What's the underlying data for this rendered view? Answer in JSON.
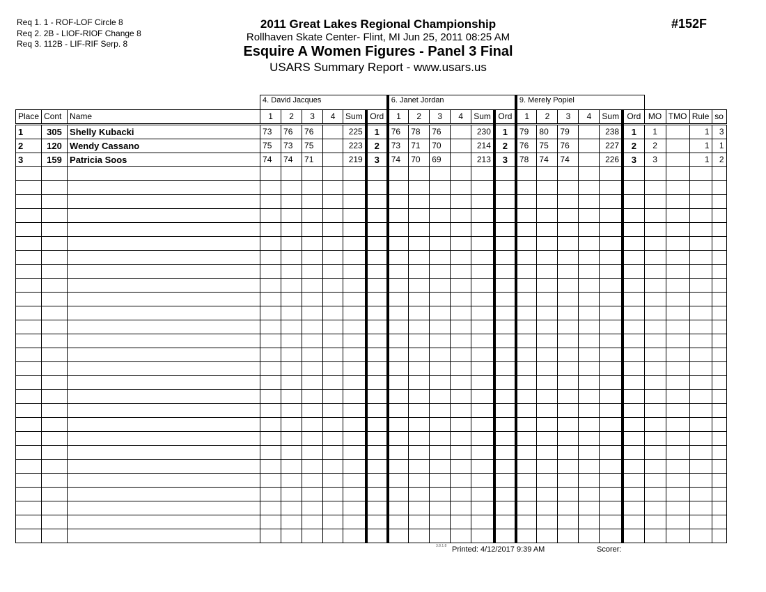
{
  "requirements": [
    "Req  1.  1 - ROF-LOF Circle 8",
    "Req  2.  2B - LIOF-RIOF Change 8",
    "Req  3.  112B - LIF-RIF Serp. 8"
  ],
  "header": {
    "title": "2011 Great Lakes Regional Championship",
    "location": "Rollhaven Skate Center- Flint, MI  Jun 25, 2011  08:25 AM",
    "event": "Esquire A Women Figures - Panel 3 Final",
    "report": "USARS Summary Report - www.usars.us",
    "event_number": "#152F"
  },
  "judges": [
    "4.  David Jacques",
    "6.  Janet Jordan",
    "9.  Merely Popiel"
  ],
  "columns": {
    "place": "Place",
    "cont": "Cont",
    "name": "Name",
    "judge_cols": [
      "1",
      "2",
      "3",
      "4",
      "Sum",
      "Ord"
    ],
    "mo": "MO",
    "tmo": "TMO",
    "rule": "Rule",
    "so": "so"
  },
  "rows": [
    {
      "place": "1",
      "cont": "305",
      "name": "Shelly Kubacki",
      "scores": [
        [
          "73",
          "76",
          "76",
          "",
          "225",
          "1"
        ],
        [
          "76",
          "78",
          "76",
          "",
          "230",
          "1"
        ],
        [
          "79",
          "80",
          "79",
          "",
          "238",
          "1"
        ]
      ],
      "mo": "1",
      "tmo": "",
      "rule": "1",
      "so": "3"
    },
    {
      "place": "2",
      "cont": "120",
      "name": "Wendy Cassano",
      "scores": [
        [
          "75",
          "73",
          "75",
          "",
          "223",
          "2"
        ],
        [
          "73",
          "71",
          "70",
          "",
          "214",
          "2"
        ],
        [
          "76",
          "75",
          "76",
          "",
          "227",
          "2"
        ]
      ],
      "mo": "2",
      "tmo": "",
      "rule": "1",
      "so": "1"
    },
    {
      "place": "3",
      "cont": "159",
      "name": "Patricia Soos",
      "scores": [
        [
          "74",
          "74",
          "71",
          "",
          "219",
          "3"
        ],
        [
          "74",
          "70",
          "69",
          "",
          "213",
          "3"
        ],
        [
          "78",
          "74",
          "74",
          "",
          "226",
          "3"
        ]
      ],
      "mo": "3",
      "tmo": "",
      "rule": "1",
      "so": "2"
    }
  ],
  "footer": {
    "version": "3.8.1.8",
    "printed": "Printed:  4/12/2017  9:39 AM",
    "scorer": "Scorer:"
  }
}
